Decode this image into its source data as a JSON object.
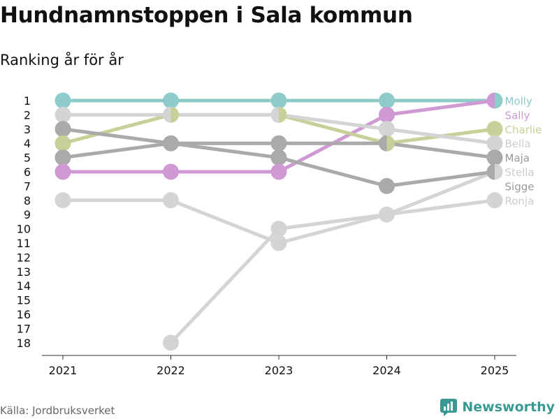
{
  "title": "Hundnamnstoppen i Sala kommun",
  "subtitle": "Ranking år för år",
  "source": "Källa: Jordbruksverket",
  "brand": "Newsworthy",
  "chart_data": {
    "type": "line",
    "chart_kind": "bump",
    "x": [
      "2021",
      "2022",
      "2023",
      "2024",
      "2025"
    ],
    "y_axis": {
      "reversed": true,
      "range": [
        1,
        18
      ],
      "ticks": [
        1,
        2,
        3,
        4,
        5,
        6,
        7,
        8,
        9,
        10,
        11,
        12,
        13,
        14,
        15,
        16,
        17,
        18
      ]
    },
    "grid": false,
    "legend": "end-labels-right",
    "series": [
      {
        "name": "Molly",
        "color": "#8fcbcb",
        "label_color": "#8fcbcb",
        "values": [
          1,
          1,
          1,
          1,
          1
        ]
      },
      {
        "name": "Sally",
        "color": "#cf99d3",
        "label_color": "#cf99d3",
        "values": [
          6,
          6,
          6,
          2,
          1
        ]
      },
      {
        "name": "Charlie",
        "color": "#c9cf98",
        "label_color": "#c9cf98",
        "values": [
          4,
          2,
          2,
          4,
          3
        ]
      },
      {
        "name": "Bella",
        "color": "#d4d4d4",
        "label_color": "#cccccc",
        "values": [
          2,
          2,
          2,
          3,
          4
        ]
      },
      {
        "name": "Maja",
        "color": "#aaaaaa",
        "label_color": "#999999",
        "values": [
          5,
          4,
          4,
          4,
          5
        ]
      },
      {
        "name": "Stella",
        "color": "#d4d4d4",
        "label_color": "#cccccc",
        "values": [
          null,
          18,
          10,
          9,
          6
        ]
      },
      {
        "name": "Sigge",
        "color": "#aaaaaa",
        "label_color": "#999999",
        "values": [
          3,
          4,
          5,
          7,
          6
        ]
      },
      {
        "name": "Ronja",
        "color": "#d4d4d4",
        "label_color": "#cccccc",
        "values": [
          8,
          8,
          11,
          9,
          8
        ]
      }
    ]
  }
}
